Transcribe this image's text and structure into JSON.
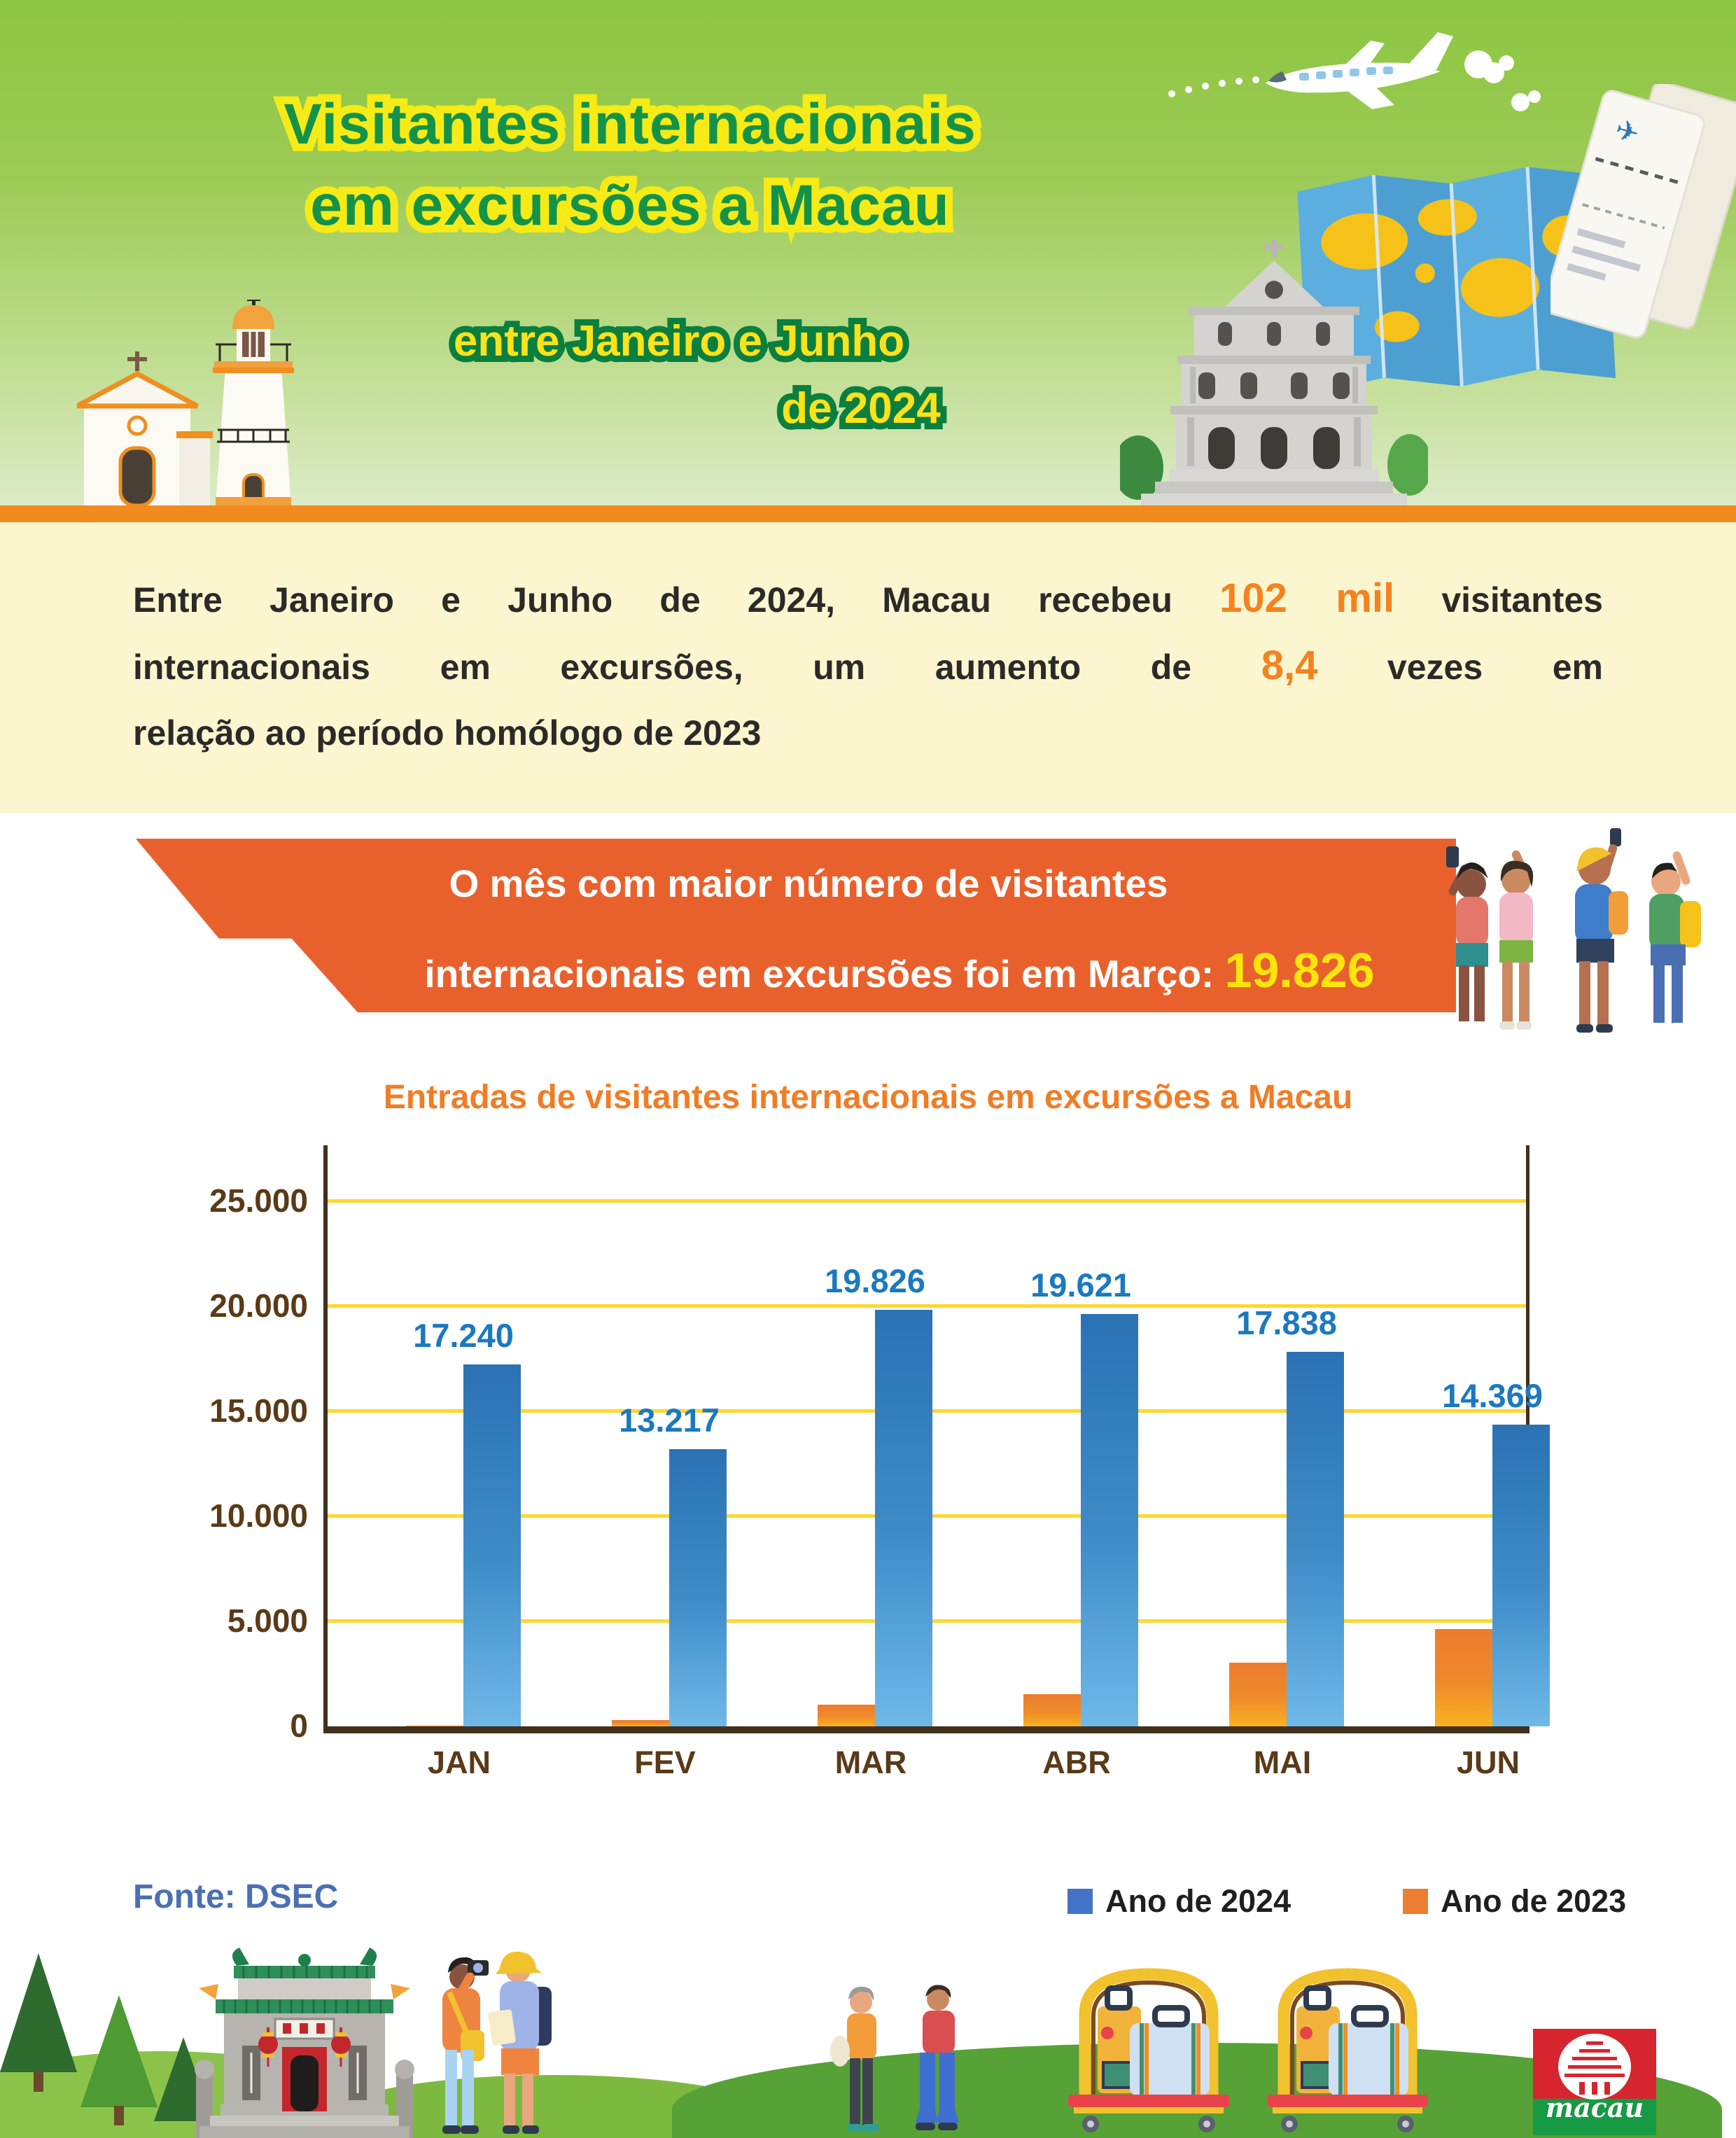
{
  "header": {
    "title_line1": "Visitantes internacionais",
    "title_line2": "em excursões a Macau",
    "subtitle_line1": "entre Janeiro e Junho",
    "subtitle_line2": "de 2024"
  },
  "intro": {
    "line1_part1": "Entre Janeiro e Junho de 2024, Macau recebeu ",
    "line1_highlight": "102 mil",
    "line1_part2": " visitantes",
    "line2_part1": "internacionais em excursões, um aumento de ",
    "line2_highlight": "8,4",
    "line2_part2": " vezes em",
    "line3": "relação ao período homólogo de 2023"
  },
  "banner": {
    "line1": "O mês com maior número de visitantes",
    "line2": "internacionais em excursões foi em Março: ",
    "highlight_value": "19.826"
  },
  "chart_data": {
    "type": "bar",
    "title": "Entradas de visitantes internacionais em excursões a Macau",
    "categories": [
      "JAN",
      "FEV",
      "MAR",
      "ABR",
      "MAI",
      "JUN"
    ],
    "series": [
      {
        "name": "Ano de 2024",
        "color": "#2d74b5",
        "values": [
          17240,
          13217,
          19826,
          19621,
          17838,
          14369
        ],
        "labels": [
          "17.240",
          "13.217",
          "19.826",
          "19.621",
          "17.838",
          "14.369"
        ]
      },
      {
        "name": "Ano de 2023",
        "color": "#ed7d31",
        "values": [
          40,
          300,
          1050,
          1530,
          3030,
          4630
        ]
      }
    ],
    "ylim": [
      0,
      25000
    ],
    "yticks": [
      {
        "label": "25.000",
        "value": 25000
      },
      {
        "label": "20.000",
        "value": 20000
      },
      {
        "label": "15.000",
        "value": 15000
      },
      {
        "label": "10.000",
        "value": 10000
      },
      {
        "label": "5.000",
        "value": 5000
      },
      {
        "label": "0",
        "value": 0
      }
    ],
    "grid": true,
    "legend_position": "bottom"
  },
  "footer": {
    "source": "Fonte: DSEC",
    "legend": [
      {
        "label": "Ano de 2024",
        "color": "#4472c4"
      },
      {
        "label": "Ano de 2023",
        "color": "#ed7d31"
      }
    ]
  },
  "colors": {
    "header_green_top": "#8cc642",
    "header_green_bottom": "#dcebc8",
    "title_green": "#13934a",
    "title_outline_yellow": "#f6eb16",
    "subtitle_yellow": "#fce21a",
    "subtitle_outline_green": "#0a7f3f",
    "divider_orange": "#f18a1f",
    "intro_bg": "#fbf6d0",
    "intro_text": "#2b2a28",
    "intro_highlight": "#f5821f",
    "banner_orange": "#e8612d",
    "banner_highlight": "#ffe50a",
    "chart_title_orange": "#f07d26",
    "axis_brown": "#42301c",
    "tick_brown": "#5a3a17",
    "gridline_yellow": "#ffd62e",
    "bar_blue_top": "#2b72b4",
    "bar_blue_bottom": "#6fb8e8",
    "bar_orange_top": "#ec7c2e",
    "bar_orange_bottom": "#f8b21f",
    "bar_label_blue": "#1b79c0",
    "source_blue": "#4a6fb3"
  }
}
